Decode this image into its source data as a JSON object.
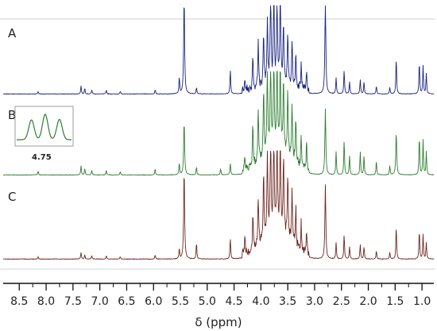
{
  "chart_data": {
    "type": "line",
    "xlabel": "δ (ppm)",
    "x_reversed": true,
    "xlim": [
      8.8,
      0.78
    ],
    "xticks": [
      "8.5",
      "8.0",
      "7.5",
      "7.0",
      "6.5",
      "6.0",
      "5.5",
      "5.0",
      "4.5",
      "4.0",
      "3.5",
      "3.0",
      "2.5",
      "2.0",
      "1.5",
      "1.0"
    ],
    "inset": {
      "panel": "B",
      "tick_label": "4.75",
      "peaks": 3
    },
    "colors": {
      "A": "#1a237e",
      "B": "#2e7d32",
      "C": "#6d2620"
    },
    "series": [
      {
        "label": "A",
        "peaks": [
          {
            "ppm": 8.15,
            "h": 0.03
          },
          {
            "ppm": 7.35,
            "h": 0.1
          },
          {
            "ppm": 7.28,
            "h": 0.07
          },
          {
            "ppm": 7.15,
            "h": 0.05
          },
          {
            "ppm": 6.88,
            "h": 0.05
          },
          {
            "ppm": 6.62,
            "h": 0.03
          },
          {
            "ppm": 5.97,
            "h": 0.05
          },
          {
            "ppm": 5.52,
            "h": 0.2
          },
          {
            "ppm": 5.43,
            "h": 1.2
          },
          {
            "ppm": 5.2,
            "h": 0.08
          },
          {
            "ppm": 4.57,
            "h": 0.3
          },
          {
            "ppm": 4.3,
            "h": 0.15
          },
          {
            "ppm": 4.15,
            "h": 0.45
          },
          {
            "ppm": 4.05,
            "h": 0.55
          },
          {
            "ppm": 3.95,
            "h": 0.65
          },
          {
            "ppm": 3.88,
            "h": 0.8
          },
          {
            "ppm": 3.82,
            "h": 1.2
          },
          {
            "ppm": 3.76,
            "h": 1.2
          },
          {
            "ppm": 3.7,
            "h": 1.0
          },
          {
            "ppm": 3.64,
            "h": 1.2
          },
          {
            "ppm": 3.58,
            "h": 0.8
          },
          {
            "ppm": 3.5,
            "h": 0.6
          },
          {
            "ppm": 3.42,
            "h": 0.55
          },
          {
            "ppm": 3.35,
            "h": 0.4
          },
          {
            "ppm": 3.25,
            "h": 0.3
          },
          {
            "ppm": 3.15,
            "h": 0.25
          },
          {
            "ppm": 2.8,
            "h": 1.2
          },
          {
            "ppm": 2.6,
            "h": 0.2
          },
          {
            "ppm": 2.45,
            "h": 0.3
          },
          {
            "ppm": 2.35,
            "h": 0.15
          },
          {
            "ppm": 2.15,
            "h": 0.18
          },
          {
            "ppm": 2.08,
            "h": 0.15
          },
          {
            "ppm": 1.85,
            "h": 0.1
          },
          {
            "ppm": 1.6,
            "h": 0.08
          },
          {
            "ppm": 1.48,
            "h": 0.45
          },
          {
            "ppm": 1.05,
            "h": 0.4
          },
          {
            "ppm": 0.98,
            "h": 0.35
          },
          {
            "ppm": 0.92,
            "h": 0.25
          }
        ]
      },
      {
        "label": "B",
        "peaks": [
          {
            "ppm": 8.15,
            "h": 0.05
          },
          {
            "ppm": 7.35,
            "h": 0.12
          },
          {
            "ppm": 7.28,
            "h": 0.08
          },
          {
            "ppm": 7.15,
            "h": 0.06
          },
          {
            "ppm": 6.88,
            "h": 0.06
          },
          {
            "ppm": 6.62,
            "h": 0.04
          },
          {
            "ppm": 5.97,
            "h": 0.08
          },
          {
            "ppm": 5.52,
            "h": 0.15
          },
          {
            "ppm": 5.43,
            "h": 0.7
          },
          {
            "ppm": 5.2,
            "h": 0.1
          },
          {
            "ppm": 4.75,
            "h": 0.08
          },
          {
            "ppm": 4.57,
            "h": 0.15
          },
          {
            "ppm": 4.3,
            "h": 0.2
          },
          {
            "ppm": 4.15,
            "h": 0.55
          },
          {
            "ppm": 4.05,
            "h": 0.7
          },
          {
            "ppm": 3.95,
            "h": 0.85
          },
          {
            "ppm": 3.88,
            "h": 1.1
          },
          {
            "ppm": 3.82,
            "h": 1.2
          },
          {
            "ppm": 3.76,
            "h": 1.2
          },
          {
            "ppm": 3.7,
            "h": 1.2
          },
          {
            "ppm": 3.64,
            "h": 1.1
          },
          {
            "ppm": 3.58,
            "h": 0.95
          },
          {
            "ppm": 3.5,
            "h": 0.8
          },
          {
            "ppm": 3.42,
            "h": 0.7
          },
          {
            "ppm": 3.35,
            "h": 0.55
          },
          {
            "ppm": 3.25,
            "h": 0.4
          },
          {
            "ppm": 3.15,
            "h": 0.35
          },
          {
            "ppm": 2.8,
            "h": 0.85
          },
          {
            "ppm": 2.6,
            "h": 0.3
          },
          {
            "ppm": 2.45,
            "h": 0.45
          },
          {
            "ppm": 2.35,
            "h": 0.25
          },
          {
            "ppm": 2.15,
            "h": 0.3
          },
          {
            "ppm": 2.08,
            "h": 0.25
          },
          {
            "ppm": 1.85,
            "h": 0.18
          },
          {
            "ppm": 1.6,
            "h": 0.12
          },
          {
            "ppm": 1.48,
            "h": 0.55
          },
          {
            "ppm": 1.05,
            "h": 0.5
          },
          {
            "ppm": 0.98,
            "h": 0.45
          },
          {
            "ppm": 0.92,
            "h": 0.3
          }
        ]
      },
      {
        "label": "C",
        "peaks": [
          {
            "ppm": 8.15,
            "h": 0.03
          },
          {
            "ppm": 7.35,
            "h": 0.08
          },
          {
            "ppm": 7.28,
            "h": 0.05
          },
          {
            "ppm": 7.15,
            "h": 0.04
          },
          {
            "ppm": 6.88,
            "h": 0.04
          },
          {
            "ppm": 6.62,
            "h": 0.03
          },
          {
            "ppm": 5.97,
            "h": 0.05
          },
          {
            "ppm": 5.52,
            "h": 0.12
          },
          {
            "ppm": 5.43,
            "h": 1.1
          },
          {
            "ppm": 5.2,
            "h": 0.2
          },
          {
            "ppm": 4.57,
            "h": 0.25
          },
          {
            "ppm": 4.3,
            "h": 0.2
          },
          {
            "ppm": 4.15,
            "h": 0.5
          },
          {
            "ppm": 4.05,
            "h": 0.6
          },
          {
            "ppm": 3.95,
            "h": 0.8
          },
          {
            "ppm": 3.88,
            "h": 1.0
          },
          {
            "ppm": 3.82,
            "h": 1.2
          },
          {
            "ppm": 3.76,
            "h": 1.2
          },
          {
            "ppm": 3.7,
            "h": 1.2
          },
          {
            "ppm": 3.64,
            "h": 1.1
          },
          {
            "ppm": 3.58,
            "h": 0.9
          },
          {
            "ppm": 3.5,
            "h": 0.75
          },
          {
            "ppm": 3.42,
            "h": 0.65
          },
          {
            "ppm": 3.35,
            "h": 0.5
          },
          {
            "ppm": 3.25,
            "h": 0.35
          },
          {
            "ppm": 3.15,
            "h": 0.3
          },
          {
            "ppm": 2.8,
            "h": 0.9
          },
          {
            "ppm": 2.6,
            "h": 0.2
          },
          {
            "ppm": 2.45,
            "h": 0.3
          },
          {
            "ppm": 2.35,
            "h": 0.15
          },
          {
            "ppm": 2.15,
            "h": 0.18
          },
          {
            "ppm": 2.08,
            "h": 0.15
          },
          {
            "ppm": 1.85,
            "h": 0.1
          },
          {
            "ppm": 1.6,
            "h": 0.08
          },
          {
            "ppm": 1.48,
            "h": 0.4
          },
          {
            "ppm": 1.05,
            "h": 0.35
          },
          {
            "ppm": 0.98,
            "h": 0.3
          },
          {
            "ppm": 0.92,
            "h": 0.2
          }
        ]
      }
    ]
  }
}
